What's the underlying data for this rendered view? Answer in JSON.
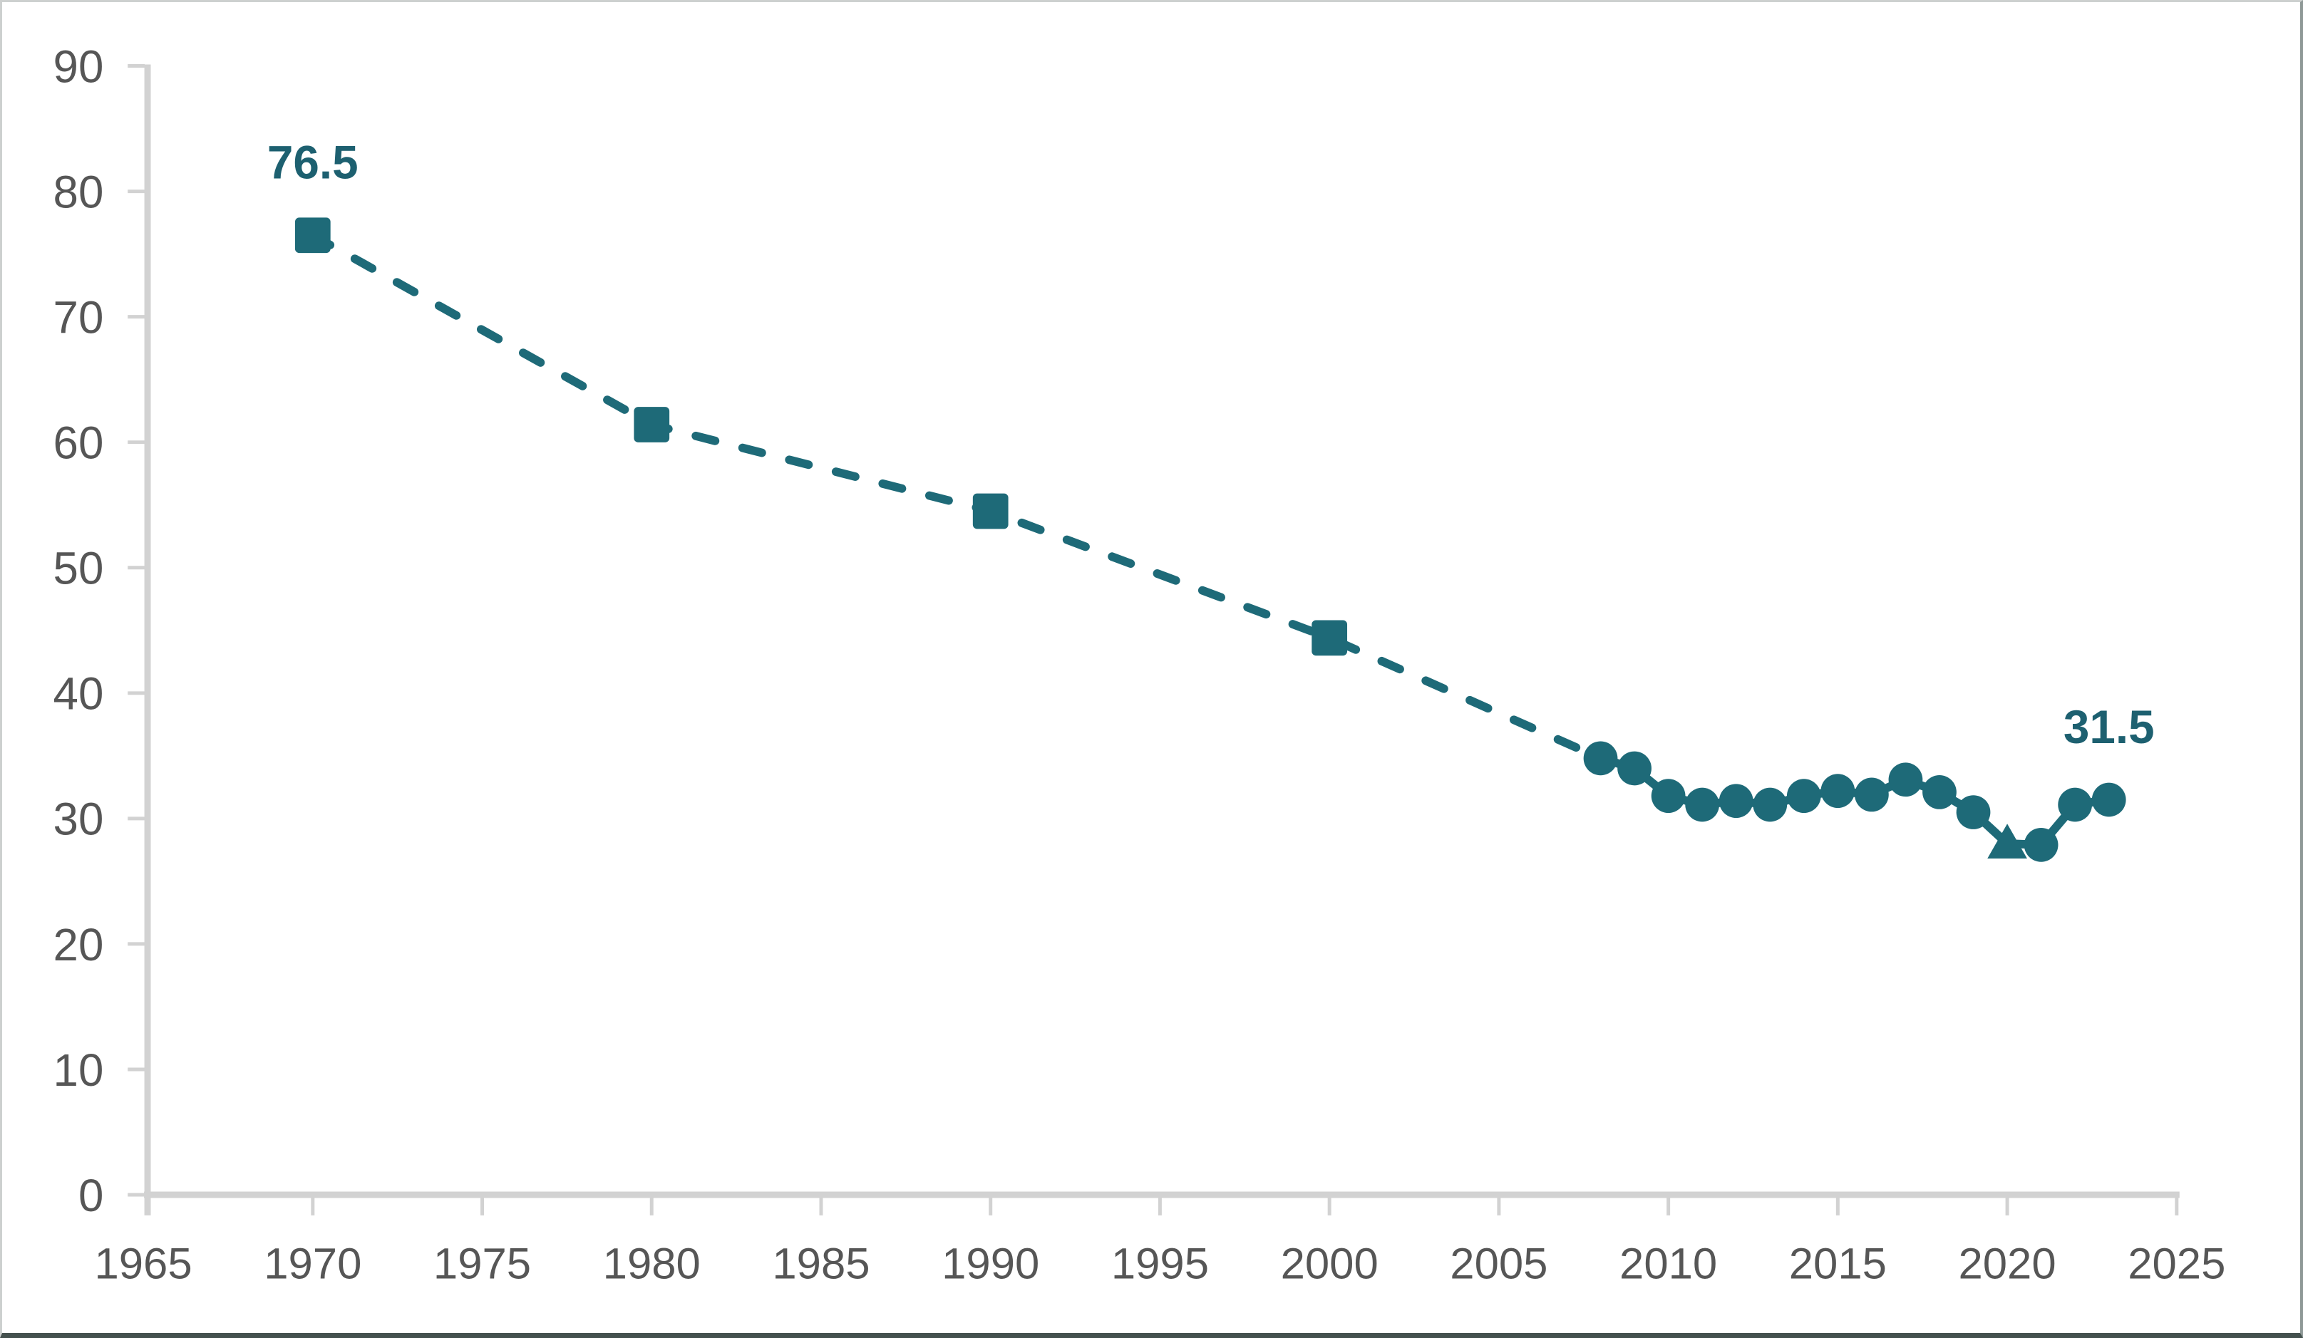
{
  "figure": {
    "background": "#ffffff",
    "accent": "#1e6a78",
    "annotation_color": "#1d6070",
    "axis_color": "#d2d2d2",
    "tick_label_color": "#565656",
    "border_light_color": "#cdd0cf",
    "border_right_color": "#8f9997",
    "border_bottom_color": "#44514e"
  },
  "chart_data": {
    "type": "line",
    "title": "",
    "xlabel": "",
    "ylabel": "",
    "xlim": [
      1965,
      2025
    ],
    "ylim": [
      0,
      90
    ],
    "grid": false,
    "legend": false,
    "x_ticks": [
      1965,
      1970,
      1975,
      1980,
      1985,
      1990,
      1995,
      2000,
      2005,
      2010,
      2015,
      2020,
      2025
    ],
    "y_ticks": [
      0,
      10,
      20,
      30,
      40,
      50,
      60,
      70,
      80,
      90
    ],
    "series": [
      {
        "name": "decennial-dashed",
        "line_style": "dashed",
        "marker": "square",
        "x": [
          1970,
          1980,
          1990,
          2000
        ],
        "values": [
          76.5,
          61.4,
          54.5,
          44.4
        ],
        "connects_to_next_series": true
      },
      {
        "name": "annual-solid",
        "line_style": "solid",
        "marker": "circle",
        "x": [
          2008,
          2009,
          2010,
          2011,
          2012,
          2013,
          2014,
          2015,
          2016,
          2017,
          2018,
          2019,
          2020,
          2021,
          2022,
          2023
        ],
        "values": [
          34.8,
          34.0,
          31.8,
          31.1,
          31.4,
          31.1,
          31.8,
          32.2,
          31.9,
          33.1,
          32.1,
          30.5,
          28.0,
          27.9,
          31.1,
          31.5
        ],
        "marker_overrides": {
          "2020": "triangle"
        }
      }
    ],
    "annotations": [
      {
        "text": "76.5",
        "year": 1970,
        "value": 76.5
      },
      {
        "text": "31.5",
        "year": 2023,
        "value": 31.5
      }
    ]
  }
}
